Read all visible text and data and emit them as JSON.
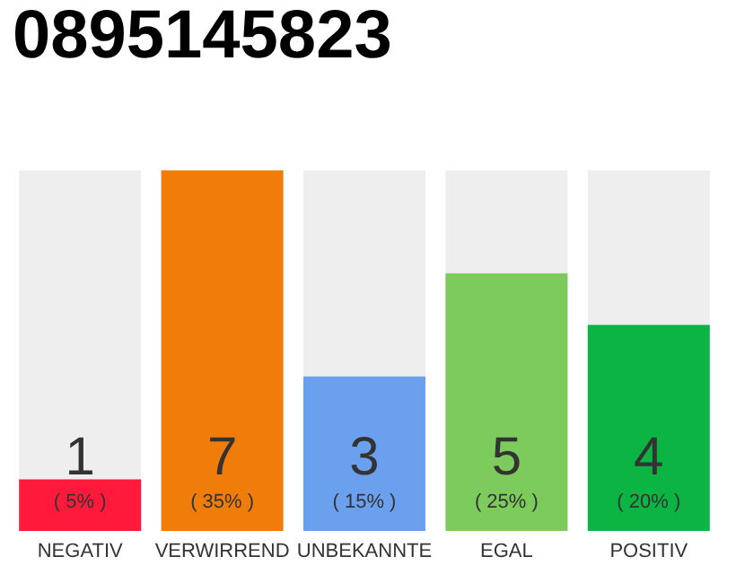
{
  "chart_data": {
    "type": "bar",
    "title": "0895145823",
    "categories": [
      "NEGATIV",
      "VERWIRREND",
      "UNBEKANNTE",
      "EGAL",
      "POSITIV"
    ],
    "values": [
      1,
      7,
      3,
      5,
      4
    ],
    "colors": [
      "#ff1a3c",
      "#f07d0a",
      "#6aa0ee",
      "#7dcb5c",
      "#0cb443"
    ],
    "value_labels": [
      "1\n( 5% )",
      "7\n( 35% )",
      "3\n( 15% )",
      "5\n( 25% )",
      "4\n( 20% )"
    ]
  }
}
